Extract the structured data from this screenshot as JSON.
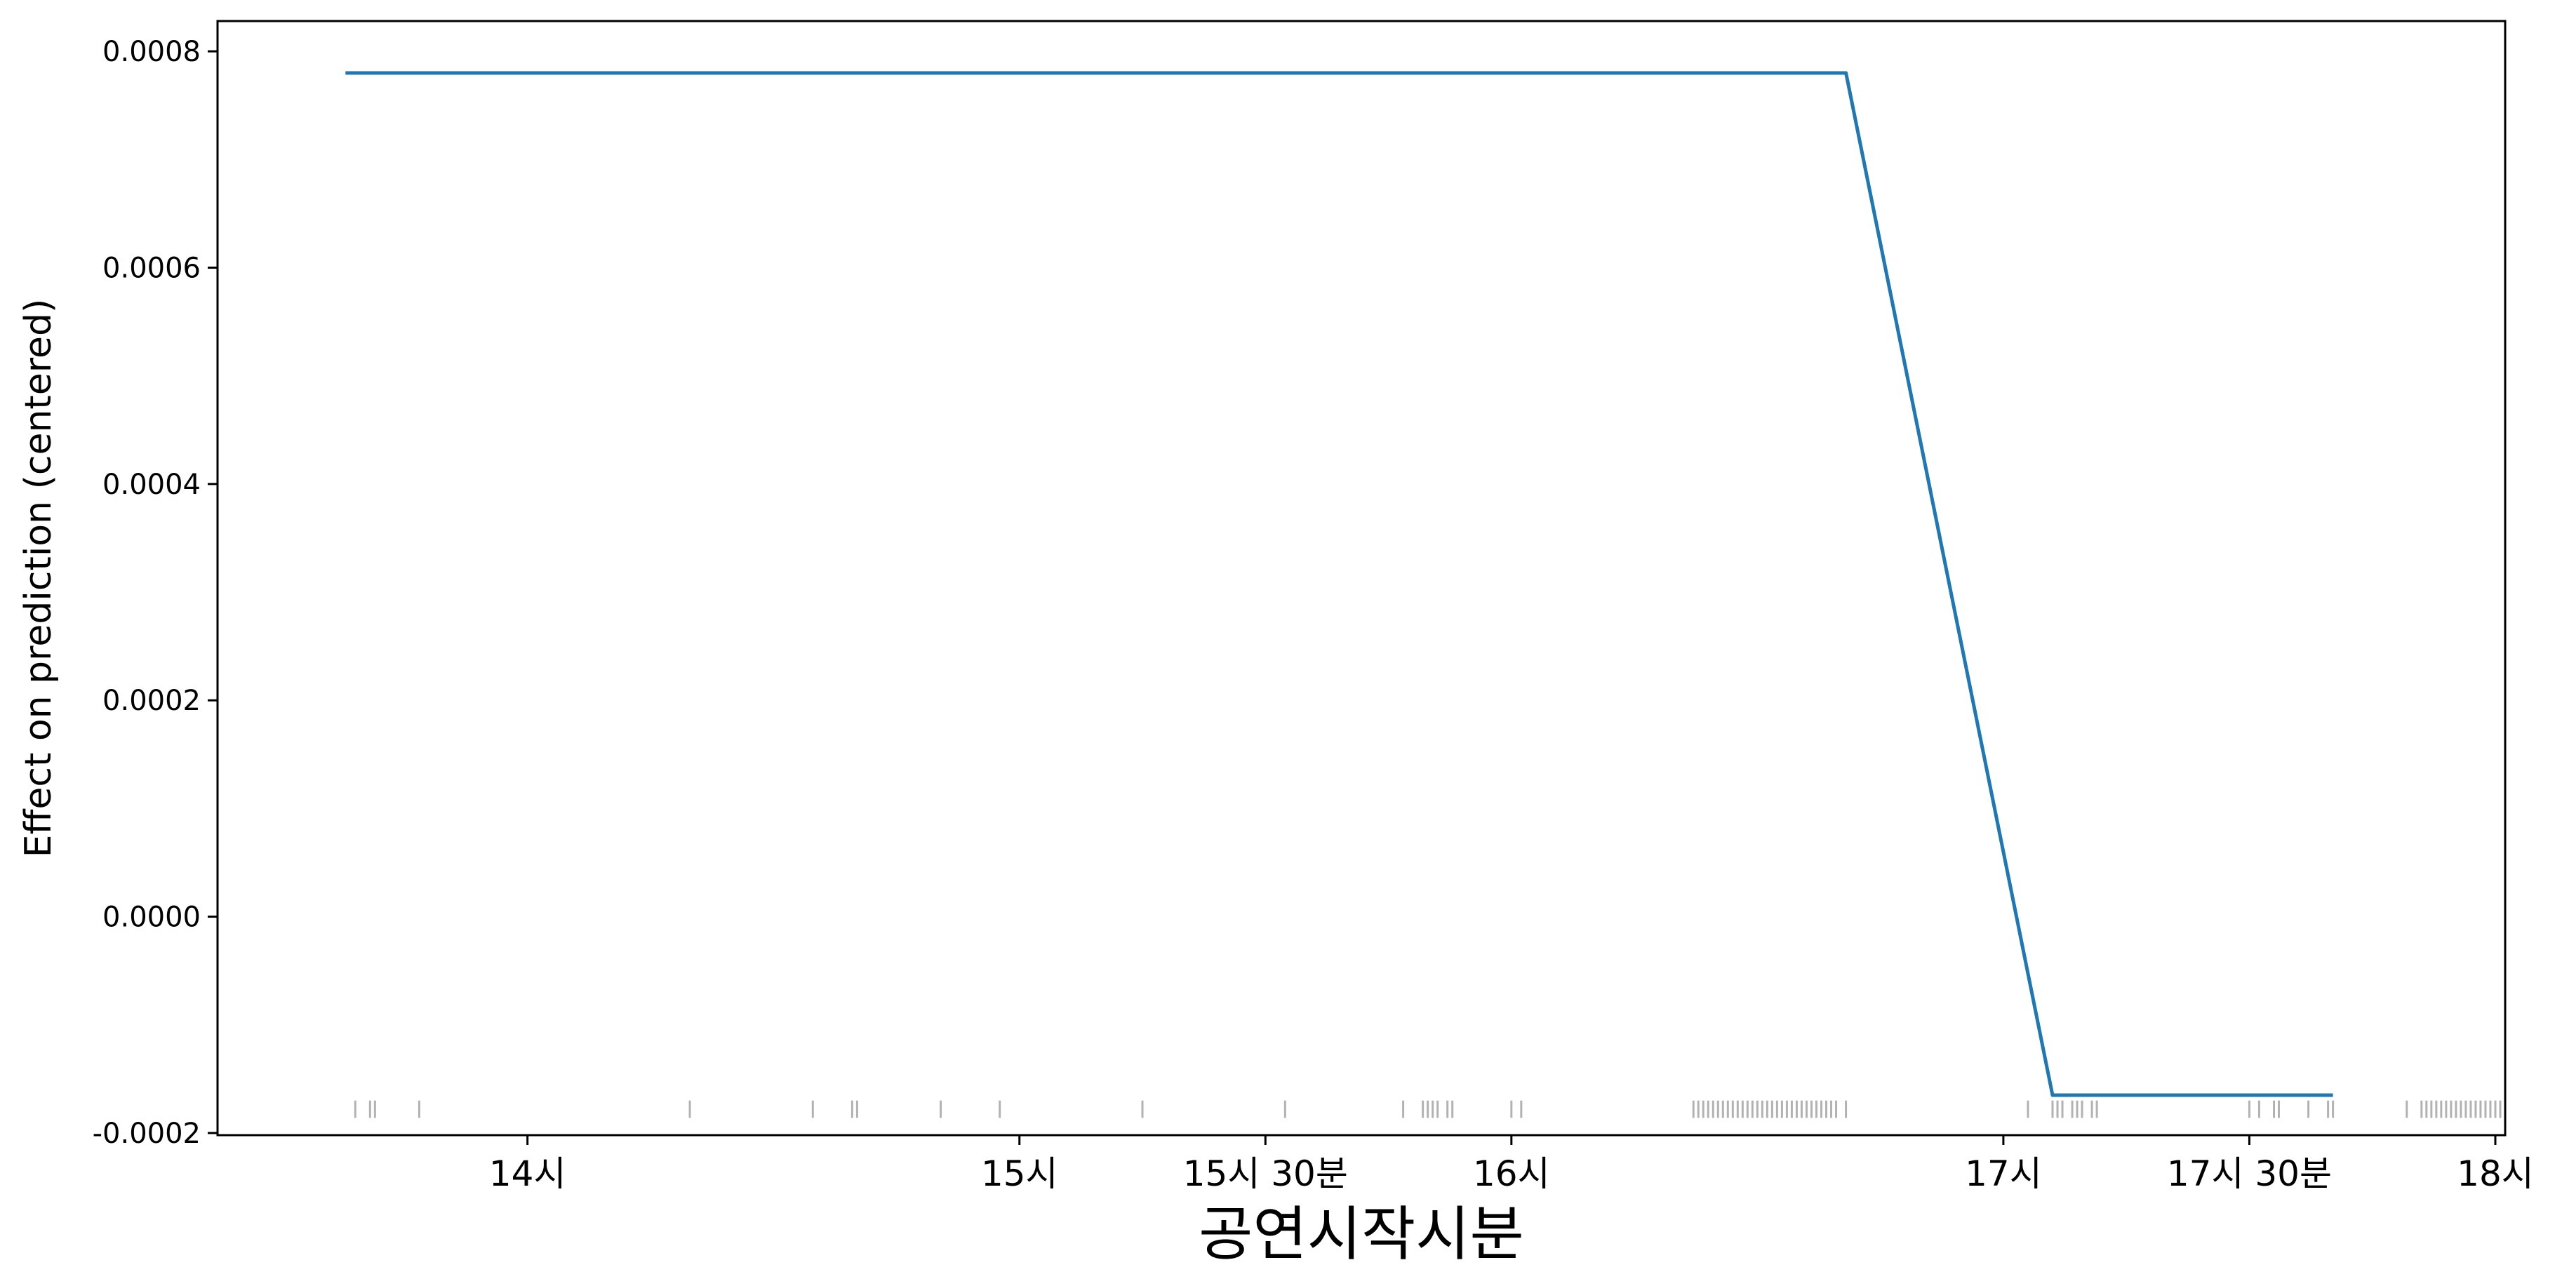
{
  "chart_data": {
    "type": "line",
    "xlabel": "공연시작시분",
    "ylabel": "Effect on prediction (centered)",
    "x_unit": "hour of day",
    "xlim": [
      13.37,
      18.02
    ],
    "ylim": [
      -0.000202,
      0.000828
    ],
    "x_ticks": [
      {
        "value": 14.0,
        "label": "14시"
      },
      {
        "value": 15.0,
        "label": "15시"
      },
      {
        "value": 15.5,
        "label": "15시 30분"
      },
      {
        "value": 16.0,
        "label": "16시"
      },
      {
        "value": 17.0,
        "label": "17시"
      },
      {
        "value": 17.5,
        "label": "17시 30분"
      },
      {
        "value": 18.0,
        "label": "18시"
      }
    ],
    "y_ticks": [
      {
        "value": -0.0002,
        "label": "-0.0002"
      },
      {
        "value": 0.0,
        "label": "0.0000"
      },
      {
        "value": 0.0002,
        "label": "0.0002"
      },
      {
        "value": 0.0004,
        "label": "0.0004"
      },
      {
        "value": 0.0006,
        "label": "0.0006"
      },
      {
        "value": 0.0008,
        "label": "0.0008"
      }
    ],
    "series": [
      {
        "color": "#1f77b4",
        "x": [
          13.63,
          16.68,
          17.1,
          17.67
        ],
        "y": [
          0.00078,
          0.00078,
          -0.000165,
          -0.000165
        ]
      }
    ],
    "rug": {
      "color": "#000000",
      "x": [
        13.65,
        13.68,
        13.69,
        13.78,
        14.33,
        14.58,
        14.66,
        14.67,
        14.84,
        14.96,
        15.25,
        15.54,
        15.78,
        15.82,
        15.83,
        15.84,
        15.85,
        15.87,
        15.88,
        16.0,
        16.02,
        16.37,
        16.38,
        16.39,
        16.4,
        16.41,
        16.42,
        16.43,
        16.44,
        16.45,
        16.46,
        16.47,
        16.48,
        16.49,
        16.5,
        16.51,
        16.52,
        16.53,
        16.54,
        16.55,
        16.56,
        16.57,
        16.58,
        16.59,
        16.6,
        16.61,
        16.62,
        16.63,
        16.64,
        16.65,
        16.66,
        16.68,
        17.05,
        17.1,
        17.11,
        17.12,
        17.14,
        17.15,
        17.16,
        17.18,
        17.19,
        17.5,
        17.52,
        17.55,
        17.56,
        17.62,
        17.66,
        17.67,
        17.82,
        17.85,
        17.86,
        17.87,
        17.88,
        17.89,
        17.9,
        17.91,
        17.92,
        17.93,
        17.94,
        17.95,
        17.96,
        17.97,
        17.98,
        17.99,
        18.0,
        18.01
      ]
    },
    "grid": false,
    "legend": "none"
  }
}
